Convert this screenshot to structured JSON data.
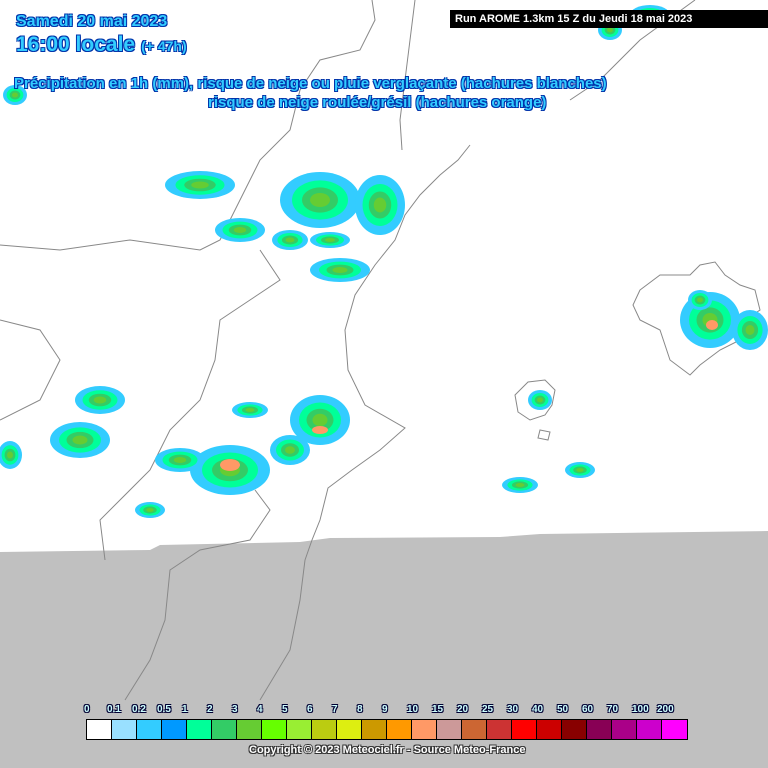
{
  "header": {
    "date": "Samedi 20 mai 2023",
    "time": "16:00 locale",
    "lead": "(+ 47h)",
    "title_line1": "Précipitation en 1h (mm), risque de neige ou pluie verglaçante (hachures blanches)",
    "title_line2": "risque de neige roulée/grésil (hachures orange)",
    "run": "Run AROME 1.3km 15 Z du Jeudi 18 mai 2023"
  },
  "legend": {
    "labels": [
      "0",
      "0.1",
      "0.2",
      "0.5",
      "1",
      "2",
      "3",
      "4",
      "5",
      "6",
      "7",
      "8",
      "9",
      "10",
      "15",
      "20",
      "25",
      "30",
      "40",
      "50",
      "60",
      "70",
      "100",
      "200"
    ],
    "colors": [
      "#ffffff",
      "#99e0ff",
      "#33ccff",
      "#0099ff",
      "#00ff99",
      "#33cc66",
      "#66cc33",
      "#66ff00",
      "#99ee33",
      "#bbcc11",
      "#ddee11",
      "#cc9900",
      "#ff9900",
      "#ff9966",
      "#cc9999",
      "#cc6633",
      "#cc3333",
      "#ff0000",
      "#cc0000",
      "#880000",
      "#880055",
      "#aa0088",
      "#cc00cc",
      "#ff00ff"
    ]
  },
  "copyright": "Copyright © 2023 Meteociel.fr - Source Meteo-France",
  "colors": {
    "out_of_domain": "#c0c0c0",
    "borders": "#888888"
  }
}
